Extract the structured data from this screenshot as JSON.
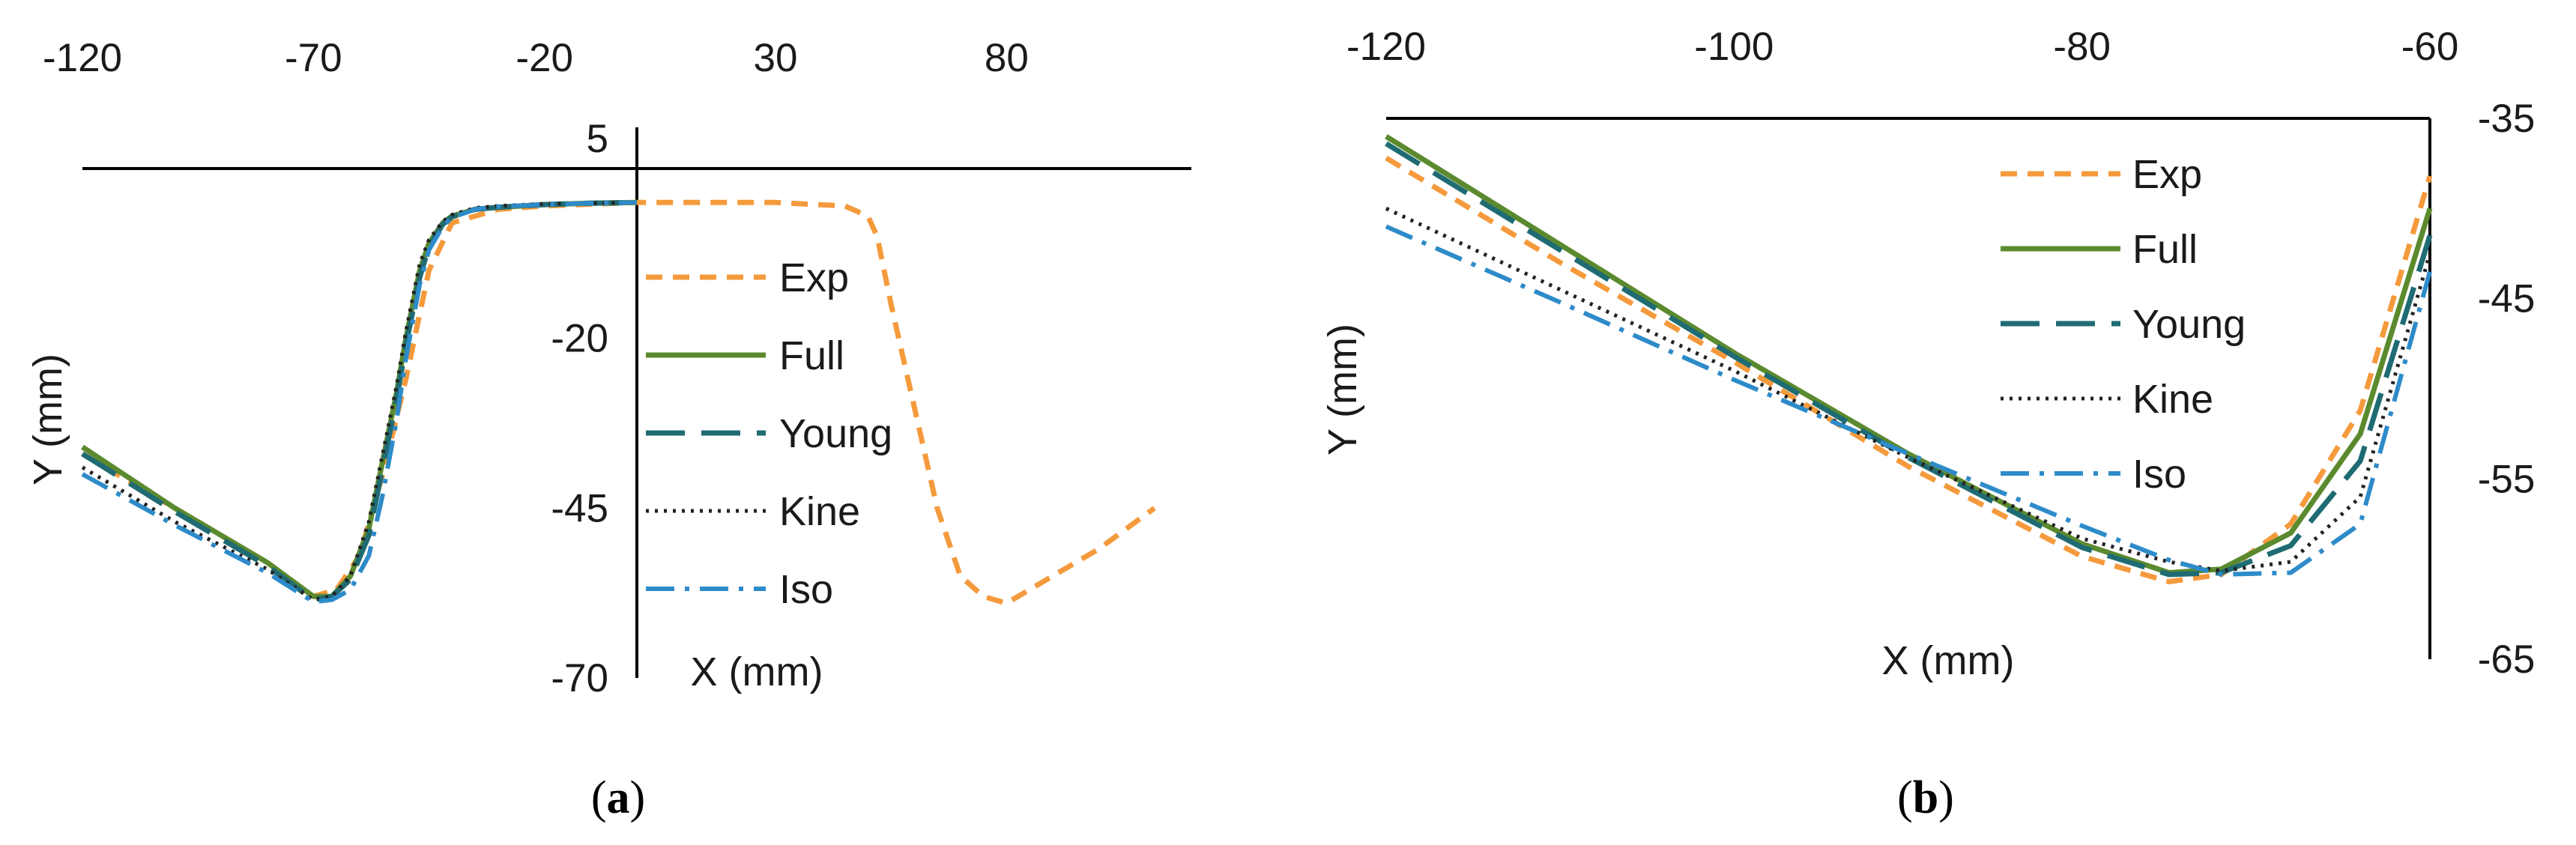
{
  "colors": {
    "Exp": "#f59a3c",
    "Full": "#5b8a2e",
    "Young": "#1f6b73",
    "Kine": "#222222",
    "Iso": "#2e8bc9",
    "axis": "#000000"
  },
  "chart_data": [
    {
      "type": "line",
      "panel": "(a)",
      "panel_letter": "a",
      "xlabel": "X (mm)",
      "ylabel": "Y (mm)",
      "xlim": [
        -120,
        120
      ],
      "ylim": [
        -70,
        5
      ],
      "x_ticks": [
        "-120",
        "-70",
        "-20",
        "30",
        "80"
      ],
      "y_ticks": [
        "5",
        "-20",
        "-45",
        "-70"
      ],
      "grid": false,
      "legend_position": "center-right",
      "series": [
        {
          "name": "Exp",
          "style": "dashed",
          "x": [
            -120,
            -100,
            -80,
            -70,
            -65,
            -60,
            -55,
            -50,
            -45,
            -40,
            -30,
            -20,
            0,
            30,
            45,
            50,
            52,
            55,
            60,
            65,
            70,
            75,
            80,
            85,
            90,
            100,
            112
          ],
          "y": [
            -37,
            -45,
            -53,
            -58,
            -57,
            -52,
            -40,
            -26,
            -10,
            -3,
            -1,
            -0.5,
            0,
            0,
            -0.5,
            -2,
            -5,
            -15,
            -30,
            -45,
            -55,
            -58,
            -59,
            -57,
            -55,
            -51,
            -45
          ]
        },
        {
          "name": "Full",
          "style": "solid",
          "x": [
            -120,
            -100,
            -80,
            -70,
            -66,
            -62,
            -58,
            -55,
            -52,
            -50,
            -47,
            -45,
            -42,
            -40,
            -35,
            -30,
            -20,
            -10,
            0
          ],
          "y": [
            -36,
            -45,
            -53,
            -58,
            -58,
            -55,
            -48,
            -38,
            -28,
            -20,
            -10,
            -6,
            -3,
            -2,
            -1,
            -0.7,
            -0.3,
            -0.1,
            0
          ]
        },
        {
          "name": "Young",
          "style": "long-dash",
          "x": [
            -120,
            -100,
            -80,
            -70,
            -66,
            -62,
            -58,
            -55,
            -52,
            -50,
            -47,
            -45,
            -42,
            -40,
            -35,
            -30,
            -20,
            -10,
            0
          ],
          "y": [
            -37,
            -45.5,
            -53.5,
            -58.5,
            -58,
            -55.5,
            -49,
            -39,
            -29,
            -21,
            -11,
            -6.5,
            -3.2,
            -2.1,
            -1,
            -0.7,
            -0.3,
            -0.1,
            0
          ]
        },
        {
          "name": "Kine",
          "style": "dotted",
          "x": [
            -120,
            -100,
            -80,
            -70,
            -66,
            -62,
            -58,
            -55,
            -52,
            -50,
            -47,
            -45,
            -42,
            -40,
            -35,
            -30,
            -20,
            -10,
            0
          ],
          "y": [
            -39,
            -47,
            -54,
            -58.5,
            -58,
            -55,
            -47,
            -37,
            -27,
            -19,
            -9,
            -5.5,
            -2.8,
            -1.8,
            -0.8,
            -0.5,
            -0.2,
            -0.1,
            0
          ]
        },
        {
          "name": "Iso",
          "style": "dash-dot",
          "x": [
            -120,
            -100,
            -80,
            -70,
            -66,
            -62,
            -58,
            -55,
            -52,
            -50,
            -47,
            -45,
            -42,
            -40,
            -35,
            -30,
            -20,
            -10,
            0
          ],
          "y": [
            -40,
            -47.5,
            -54.5,
            -58.8,
            -58.5,
            -57,
            -52,
            -43,
            -32,
            -23,
            -12,
            -7,
            -3.5,
            -2.2,
            -1,
            -0.6,
            -0.3,
            -0.1,
            0
          ]
        }
      ]
    },
    {
      "type": "line",
      "panel": "(b)",
      "panel_letter": "b",
      "xlabel": "X (mm)",
      "ylabel": "Y (mm)",
      "xlim": [
        -120,
        -60
      ],
      "ylim": [
        -65,
        -35
      ],
      "x_ticks": [
        "-120",
        "-100",
        "-80",
        "-60"
      ],
      "y_ticks": [
        "-35",
        "-45",
        "-55",
        "-65"
      ],
      "grid": false,
      "legend_position": "top-right",
      "series": [
        {
          "name": "Exp",
          "style": "dashed",
          "x": [
            -120,
            -110,
            -100,
            -90,
            -80,
            -75,
            -72,
            -68,
            -64,
            -60
          ],
          "y": [
            -37.2,
            -43,
            -48.5,
            -54.3,
            -59.3,
            -60.7,
            -60.3,
            -57.5,
            -51.2,
            -38.2
          ]
        },
        {
          "name": "Full",
          "style": "solid",
          "x": [
            -120,
            -110,
            -100,
            -90,
            -80,
            -75,
            -72,
            -68,
            -64,
            -60
          ],
          "y": [
            -36,
            -42,
            -48,
            -53.6,
            -58.6,
            -60.2,
            -60,
            -58,
            -52.5,
            -40
          ]
        },
        {
          "name": "Young",
          "style": "long-dash",
          "x": [
            -120,
            -110,
            -100,
            -90,
            -80,
            -75,
            -72,
            -68,
            -64,
            -60
          ],
          "y": [
            -36.4,
            -42.3,
            -48.2,
            -53.8,
            -58.8,
            -60.3,
            -60.2,
            -58.7,
            -54,
            -41.5
          ]
        },
        {
          "name": "Kine",
          "style": "dotted",
          "x": [
            -120,
            -110,
            -100,
            -90,
            -80,
            -75,
            -72,
            -68,
            -64,
            -60
          ],
          "y": [
            -40,
            -44.5,
            -49,
            -53.8,
            -58.3,
            -59.6,
            -60.1,
            -59.6,
            -56,
            -42.5
          ]
        },
        {
          "name": "Iso",
          "style": "dash-dot",
          "x": [
            -120,
            -110,
            -100,
            -90,
            -80,
            -75,
            -72,
            -68,
            -64,
            -60
          ],
          "y": [
            -41,
            -45.2,
            -49.5,
            -53.6,
            -57.6,
            -59.5,
            -60.3,
            -60.2,
            -57.5,
            -43.5
          ]
        }
      ]
    }
  ]
}
